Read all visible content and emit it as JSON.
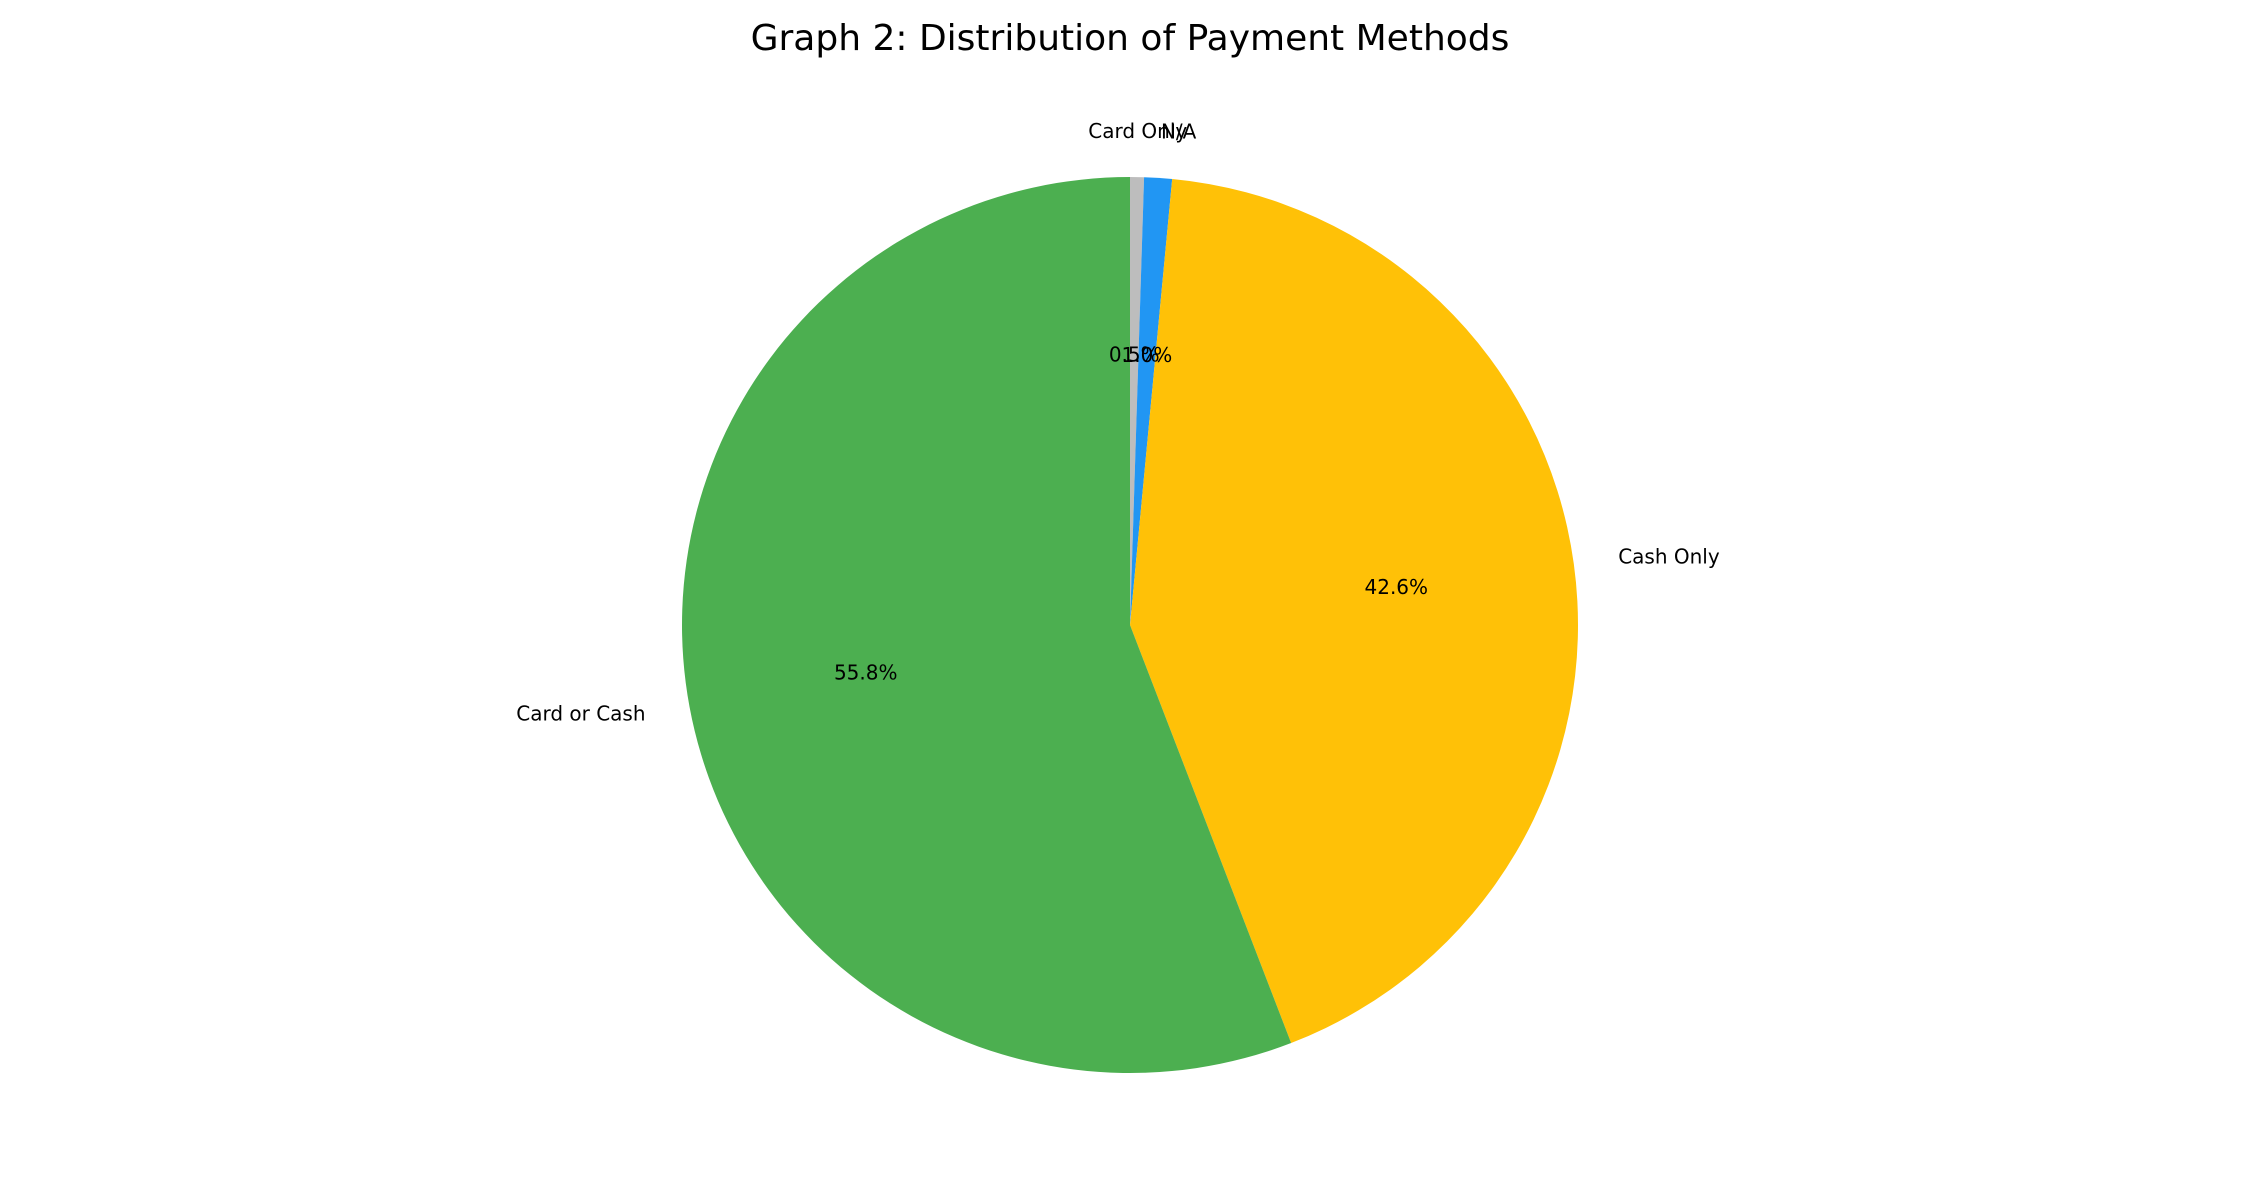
{
  "chart_data": {
    "type": "pie",
    "title": "Graph 2: Distribution of Payment Methods",
    "start_angle_deg": 90,
    "direction": "clockwise",
    "slices": [
      {
        "label": "Card Only",
        "value": 0.5,
        "pct_label": "0.5%",
        "color": "#BDBDBD"
      },
      {
        "label": "N/A",
        "value": 1.0,
        "pct_label": "1.0%",
        "color": "#2196F3"
      },
      {
        "label": "Cash Only",
        "value": 42.6,
        "pct_label": "42.6%",
        "color": "#FFC107"
      },
      {
        "label": "Card or Cash",
        "value": 55.8,
        "pct_label": "55.8%",
        "color": "#4CAF50"
      }
    ]
  }
}
